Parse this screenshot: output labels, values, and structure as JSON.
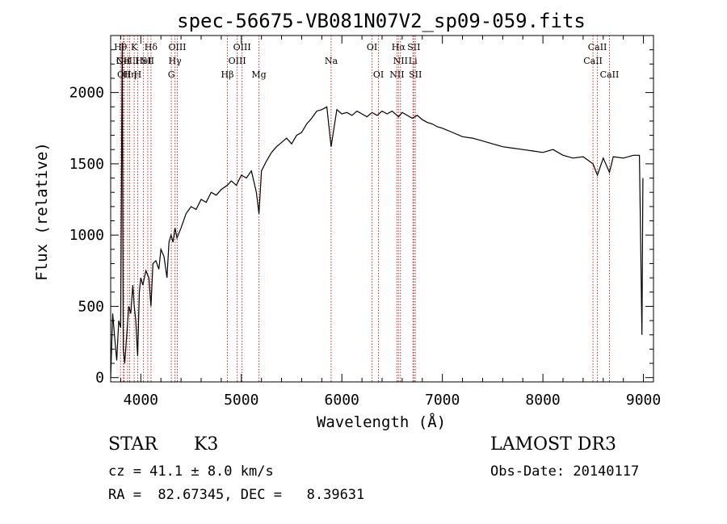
{
  "chart_data": {
    "type": "line",
    "title": "spec-56675-VB081N07V2_sp09-059.fits",
    "xlabel": "Wavelength (Å)",
    "ylabel": "Flux (relative)",
    "xlim": [
      3700,
      9100
    ],
    "ylim": [
      -30,
      2400
    ],
    "xticks": [
      4000,
      5000,
      6000,
      7000,
      8000,
      9000
    ],
    "xtick_labels": [
      "4000",
      "5000",
      "6000",
      "7000",
      "8000",
      "9000"
    ],
    "yticks": [
      0,
      500,
      1000,
      1500,
      2000
    ],
    "ytick_labels": [
      "0",
      "500",
      "1000",
      "1500",
      "2000"
    ],
    "grid": false,
    "series": [
      {
        "name": "flux",
        "x": [
          3700,
          3720,
          3740,
          3760,
          3780,
          3800,
          3815,
          3825,
          3840,
          3860,
          3880,
          3900,
          3920,
          3935,
          3950,
          3968,
          3985,
          4000,
          4020,
          4050,
          4080,
          4101,
          4120,
          4150,
          4180,
          4200,
          4230,
          4260,
          4280,
          4300,
          4320,
          4340,
          4360,
          4400,
          4450,
          4500,
          4550,
          4600,
          4650,
          4700,
          4750,
          4800,
          4861,
          4900,
          4950,
          5000,
          5050,
          5100,
          5150,
          5175,
          5200,
          5250,
          5300,
          5350,
          5400,
          5450,
          5500,
          5550,
          5600,
          5650,
          5700,
          5750,
          5800,
          5850,
          5893,
          5950,
          6000,
          6050,
          6100,
          6150,
          6200,
          6250,
          6300,
          6350,
          6400,
          6450,
          6500,
          6563,
          6600,
          6650,
          6700,
          6750,
          6800,
          6850,
          6900,
          6950,
          7000,
          7100,
          7200,
          7300,
          7400,
          7500,
          7600,
          7700,
          7800,
          7900,
          8000,
          8100,
          8200,
          8300,
          8400,
          8498,
          8542,
          8600,
          8662,
          8700,
          8800,
          8900,
          8960,
          8985,
          8995
        ],
        "y": [
          0,
          450,
          280,
          120,
          400,
          350,
          2350,
          200,
          100,
          300,
          500,
          450,
          650,
          500,
          400,
          150,
          600,
          700,
          650,
          750,
          700,
          500,
          800,
          820,
          760,
          900,
          850,
          700,
          950,
          1000,
          950,
          1050,
          980,
          1050,
          1150,
          1200,
          1180,
          1250,
          1230,
          1300,
          1280,
          1320,
          1350,
          1380,
          1350,
          1420,
          1400,
          1450,
          1300,
          1150,
          1450,
          1520,
          1580,
          1620,
          1650,
          1680,
          1640,
          1700,
          1720,
          1780,
          1820,
          1870,
          1880,
          1900,
          1620,
          1880,
          1850,
          1860,
          1840,
          1870,
          1850,
          1830,
          1860,
          1840,
          1870,
          1850,
          1870,
          1830,
          1860,
          1840,
          1820,
          1840,
          1810,
          1790,
          1780,
          1760,
          1750,
          1720,
          1690,
          1680,
          1660,
          1640,
          1620,
          1610,
          1600,
          1590,
          1580,
          1600,
          1560,
          1540,
          1550,
          1500,
          1420,
          1540,
          1440,
          1550,
          1540,
          1560,
          1560,
          300,
          1400
        ]
      }
    ],
    "lines": [
      {
        "x": 3798,
        "row": 0,
        "label": "Hθ"
      },
      {
        "x": 3826,
        "row": 1,
        "label": "OII"
      },
      {
        "x": 3835,
        "row": 2,
        "label": "OII"
      },
      {
        "x": 3869,
        "row": 1,
        "label": "NeIII"
      },
      {
        "x": 3889,
        "row": 2,
        "label": "Hη"
      },
      {
        "x": 3934,
        "row": 0,
        "label": "K"
      },
      {
        "x": 3969,
        "row": 2,
        "label": "H"
      },
      {
        "x": 4026,
        "row": 1,
        "label": "HeI"
      },
      {
        "x": 4069,
        "row": 1,
        "label": "SII"
      },
      {
        "x": 4101,
        "row": 0,
        "label": "Hδ"
      },
      {
        "x": 4304,
        "row": 2,
        "label": "G"
      },
      {
        "x": 4340,
        "row": 1,
        "label": "Hγ"
      },
      {
        "x": 4363,
        "row": 0,
        "label": "OIII"
      },
      {
        "x": 4861,
        "row": 2,
        "label": "Hβ"
      },
      {
        "x": 4959,
        "row": 1,
        "label": "OIII"
      },
      {
        "x": 5007,
        "row": 0,
        "label": "OIII"
      },
      {
        "x": 5175,
        "row": 2,
        "label": "Mg"
      },
      {
        "x": 5893,
        "row": 1,
        "label": "Na"
      },
      {
        "x": 6300,
        "row": 0,
        "label": "OI"
      },
      {
        "x": 6364,
        "row": 2,
        "label": "OI"
      },
      {
        "x": 6548,
        "row": 2,
        "label": "NII"
      },
      {
        "x": 6563,
        "row": 0,
        "label": "Hα"
      },
      {
        "x": 6583,
        "row": 1,
        "label": "NII"
      },
      {
        "x": 6707,
        "row": 1,
        "label": "Li"
      },
      {
        "x": 6716,
        "row": 0,
        "label": "SII"
      },
      {
        "x": 6731,
        "row": 2,
        "label": "SII"
      },
      {
        "x": 8498,
        "row": 1,
        "label": "CaII"
      },
      {
        "x": 8542,
        "row": 0,
        "label": "CaII"
      },
      {
        "x": 8662,
        "row": 2,
        "label": "CaII"
      }
    ],
    "annotations": {
      "class": "STAR",
      "subclass": "K3",
      "survey": "LAMOST DR3",
      "cz": "cz = 41.1 ± 8.0 km/s",
      "obs_date": "Obs-Date: 20140117",
      "coords": "RA =  82.67345, DEC =   8.39631"
    }
  }
}
